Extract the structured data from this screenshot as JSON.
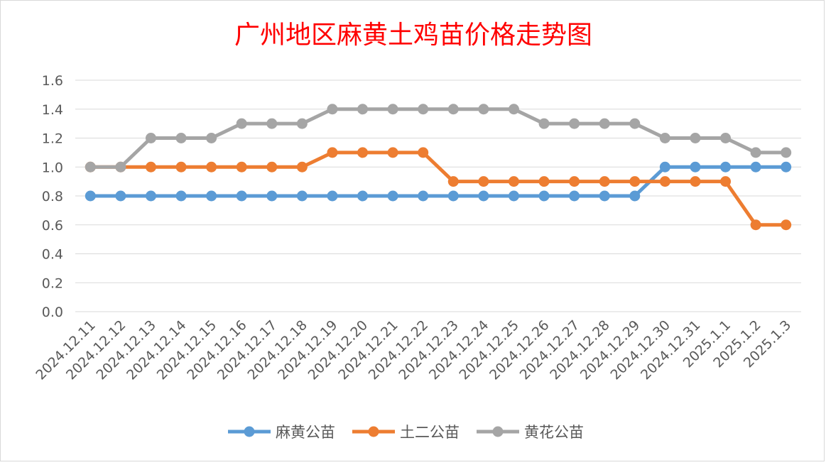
{
  "chart_data": {
    "type": "line",
    "title": "广州地区麻黄土鸡苗价格走势图",
    "categories": [
      "2024.12.11",
      "2024.12.12",
      "2024.12.13",
      "2024.12.14",
      "2024.12.15",
      "2024.12.16",
      "2024.12.17",
      "2024.12.18",
      "2024.12.19",
      "2024.12.20",
      "2024.12.21",
      "2024.12.22",
      "2024.12.23",
      "2024.12.24",
      "2024.12.25",
      "2024.12.26",
      "2024.12.27",
      "2024.12.28",
      "2024.12.29",
      "2024.12.30",
      "2024.12.31",
      "2025.1.1",
      "2025.1.2",
      "2025.1.3"
    ],
    "ylim": [
      0,
      1.6
    ],
    "yticks": [
      "0.0",
      "0.2",
      "0.4",
      "0.6",
      "0.8",
      "1.0",
      "1.2",
      "1.4",
      "1.6"
    ],
    "grid": true,
    "legend_position": "bottom",
    "series": [
      {
        "name": "麻黄公苗",
        "color": "#5b9bd5",
        "values": [
          0.8,
          0.8,
          0.8,
          0.8,
          0.8,
          0.8,
          0.8,
          0.8,
          0.8,
          0.8,
          0.8,
          0.8,
          0.8,
          0.8,
          0.8,
          0.8,
          0.8,
          0.8,
          0.8,
          1.0,
          1.0,
          1.0,
          1.0,
          1.0
        ]
      },
      {
        "name": "土二公苗",
        "color": "#ed7d31",
        "values": [
          1.0,
          1.0,
          1.0,
          1.0,
          1.0,
          1.0,
          1.0,
          1.0,
          1.1,
          1.1,
          1.1,
          1.1,
          0.9,
          0.9,
          0.9,
          0.9,
          0.9,
          0.9,
          0.9,
          0.9,
          0.9,
          0.9,
          0.6,
          0.6
        ]
      },
      {
        "name": "黄花公苗",
        "color": "#a5a5a5",
        "values": [
          1.0,
          1.0,
          1.2,
          1.2,
          1.2,
          1.3,
          1.3,
          1.3,
          1.4,
          1.4,
          1.4,
          1.4,
          1.4,
          1.4,
          1.4,
          1.3,
          1.3,
          1.3,
          1.3,
          1.2,
          1.2,
          1.2,
          1.1,
          1.1
        ]
      }
    ]
  }
}
